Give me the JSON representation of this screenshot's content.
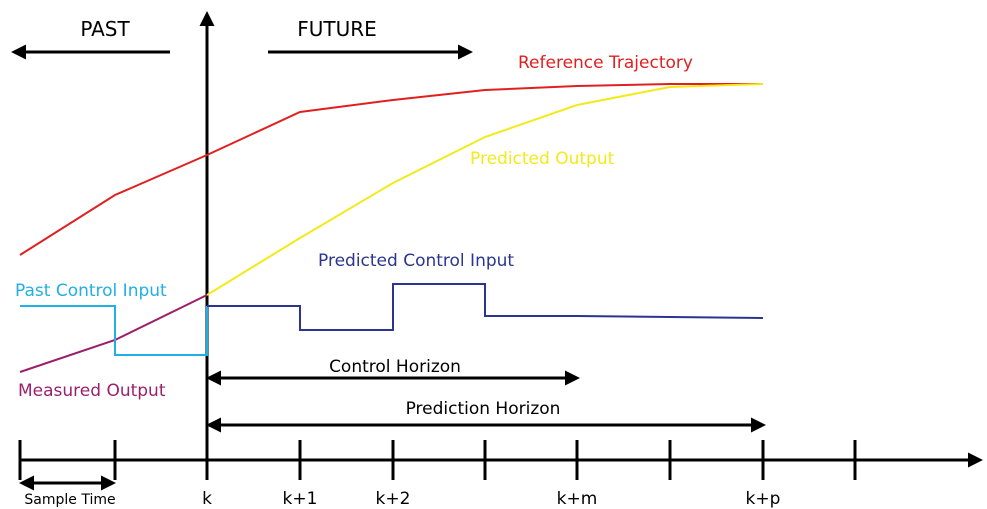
{
  "direction_labels": {
    "past": "PAST",
    "future": "FUTURE"
  },
  "curves": {
    "reference_trajectory": "Reference Trajectory",
    "predicted_output": "Predicted Output",
    "measured_output": "Measured Output",
    "past_control_input": "Past Control Input",
    "predicted_control_input": "Predicted Control Input"
  },
  "horizons": {
    "control": "Control Horizon",
    "prediction": "Prediction Horizon"
  },
  "time_axis": {
    "sample_time": "Sample Time",
    "ticks": [
      "k",
      "k+1",
      "k+2",
      "k+m",
      "k+p"
    ]
  }
}
